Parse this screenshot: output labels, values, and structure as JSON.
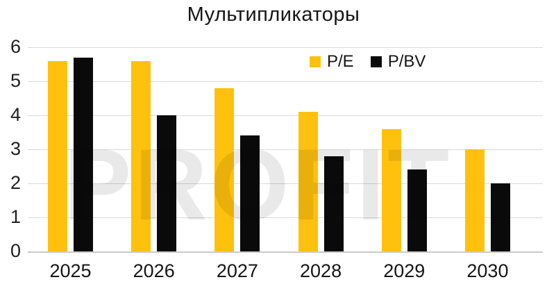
{
  "watermark": {
    "text": "PROFIT"
  },
  "colors": {
    "pe_bar": "#FFC10D",
    "pbv_bar": "#0A0A0A",
    "gridline": "#D9D9D9",
    "axis_line": "#C9C9C9",
    "text": "#151515",
    "watermark": "#E9E9E9",
    "background": "#FFFFFF"
  },
  "chart_data": {
    "type": "bar",
    "title": "Мультипликаторы",
    "categories": [
      "2025",
      "2026",
      "2027",
      "2028",
      "2029",
      "2030"
    ],
    "series": [
      {
        "name": "P/E",
        "color": "#FFC10D",
        "values": [
          5.6,
          5.6,
          4.8,
          4.1,
          3.6,
          3.0
        ]
      },
      {
        "name": "P/BV",
        "color": "#0A0A0A",
        "values": [
          5.7,
          4.0,
          3.4,
          2.8,
          2.4,
          2.0
        ]
      }
    ],
    "xlabel": "",
    "ylabel": "",
    "ylim": [
      0,
      6
    ],
    "yticks": [
      0,
      1,
      2,
      3,
      4,
      5,
      6
    ],
    "grid": true,
    "legend_position": "top-center-inside"
  }
}
